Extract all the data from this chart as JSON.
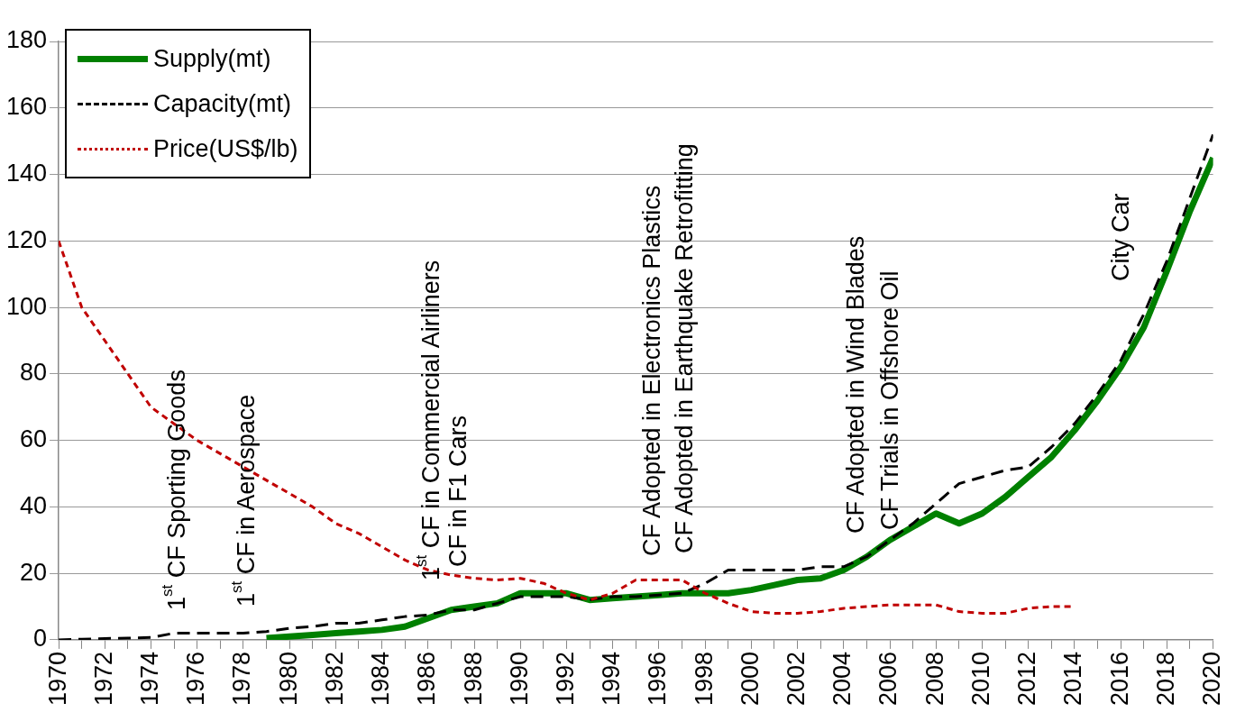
{
  "chart_data": {
    "type": "line",
    "x": [
      1970,
      1971,
      1972,
      1973,
      1974,
      1975,
      1976,
      1977,
      1978,
      1979,
      1980,
      1981,
      1982,
      1983,
      1984,
      1985,
      1986,
      1987,
      1988,
      1989,
      1990,
      1991,
      1992,
      1993,
      1994,
      1995,
      1996,
      1997,
      1998,
      1999,
      2000,
      2001,
      2002,
      2003,
      2004,
      2005,
      2006,
      2007,
      2008,
      2009,
      2010,
      2011,
      2012,
      2013,
      2014,
      2015,
      2016,
      2017,
      2018,
      2019,
      2020
    ],
    "series": [
      {
        "name": "Supply(mt)",
        "color": "#008000",
        "line_style": "solid",
        "values": [
          null,
          null,
          null,
          null,
          null,
          null,
          null,
          null,
          null,
          0.5,
          1,
          1.5,
          2,
          2.5,
          3,
          4,
          6.5,
          9,
          10,
          11,
          14,
          14,
          14,
          12,
          12.5,
          13,
          13.5,
          14,
          14,
          14,
          15,
          16.5,
          18,
          18.5,
          21,
          25,
          30,
          34,
          38,
          35,
          38,
          43,
          49,
          55,
          63,
          72,
          82,
          94,
          111,
          129,
          145
        ]
      },
      {
        "name": "Capacity(mt)",
        "color": "#000000",
        "line_style": "dashed",
        "values": [
          0,
          0.2,
          0.4,
          0.5,
          0.7,
          2,
          2,
          2,
          2,
          2.5,
          3.5,
          4,
          5,
          5,
          6,
          7,
          7.5,
          9,
          9,
          11,
          13,
          13,
          13,
          12,
          13,
          13,
          13.5,
          14,
          17,
          21,
          21,
          21,
          21,
          22,
          22,
          25,
          30,
          35,
          41,
          47,
          49,
          51,
          52,
          58,
          65,
          74,
          84,
          98,
          114,
          133,
          152
        ]
      },
      {
        "name": "Price(US$/lb)",
        "color": "#c00000",
        "line_style": "dotted",
        "values": [
          120,
          100,
          90,
          80,
          70,
          65,
          60,
          56,
          52,
          48,
          44,
          40,
          35,
          32,
          28,
          24,
          21,
          19.5,
          18.5,
          18,
          18.5,
          17,
          14,
          12,
          14,
          18,
          18,
          18,
          14,
          11,
          8.5,
          8,
          8,
          8.5,
          9.5,
          10,
          10.5,
          10.5,
          10.5,
          8.5,
          8,
          8,
          9.5,
          10,
          10,
          null,
          null,
          null,
          null,
          null,
          null
        ]
      }
    ],
    "xlim": [
      1970,
      2020
    ],
    "xticks": [
      1970,
      {
        "value": 1971,
        "label": null
      },
      1972,
      {
        "value": 1973,
        "label": null
      },
      1974,
      {
        "value": 1975,
        "label": null
      },
      1976,
      {
        "value": 1977,
        "label": null
      },
      1978,
      {
        "value": 1979,
        "label": null
      },
      1980,
      {
        "value": 1981,
        "label": null
      },
      1982,
      {
        "value": 1983,
        "label": null
      },
      1984,
      {
        "value": 1985,
        "label": null
      },
      1986,
      {
        "value": 1987,
        "label": null
      },
      1988,
      {
        "value": 1989,
        "label": null
      },
      1990,
      {
        "value": 1991,
        "label": null
      },
      1992,
      {
        "value": 1993,
        "label": null
      },
      1994,
      {
        "value": 1995,
        "label": null
      },
      1996,
      {
        "value": 1997,
        "label": null
      },
      1998,
      {
        "value": 1999,
        "label": null
      },
      2000,
      {
        "value": 2001,
        "label": null
      },
      2002,
      {
        "value": 2003,
        "label": null
      },
      2004,
      {
        "value": 2005,
        "label": null
      },
      2006,
      {
        "value": 2007,
        "label": null
      },
      2008,
      {
        "value": 2009,
        "label": null
      },
      2010,
      {
        "value": 2011,
        "label": null
      },
      2012,
      {
        "value": 2013,
        "label": null
      },
      2014,
      {
        "value": 2015,
        "label": null
      },
      2016,
      {
        "value": 2017,
        "label": null
      },
      2018,
      {
        "value": 2019,
        "label": null
      },
      2020
    ],
    "ylim": [
      0,
      180
    ],
    "yticks": [
      0,
      20,
      40,
      60,
      80,
      100,
      120,
      140,
      160,
      180
    ],
    "grid": "y",
    "legend": "top left",
    "marker": "none",
    "annotations": [
      "1$^{st}$ CF Sporting Goods",
      "1$^{st}$ CF in Aerospace",
      "1$^{st}$ CF in Commercial Airliners",
      "CF in F1 Cars",
      "CF Adopted in Electronics Plastics",
      "CF Adopted in Earthquake Retrofitting",
      "CF Adopted in Wind Blades",
      "CF Trials in Offshore Oil",
      "City Car"
    ]
  }
}
